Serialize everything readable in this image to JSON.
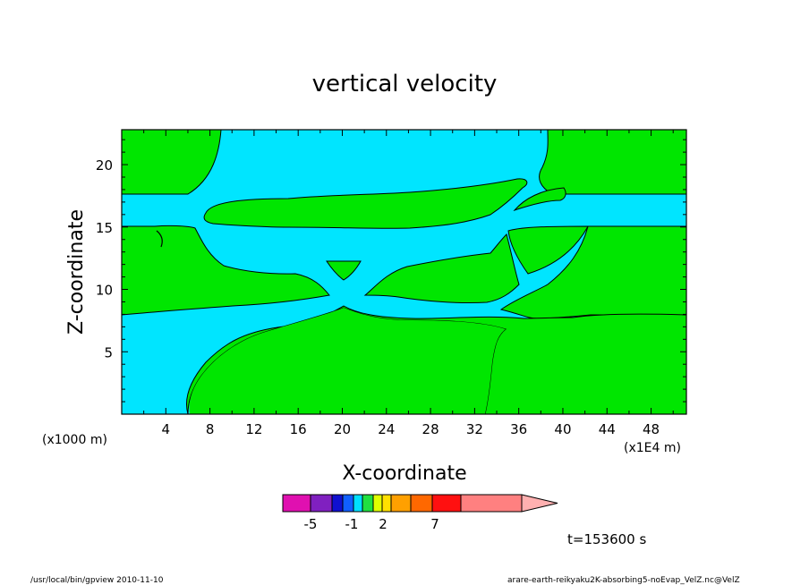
{
  "chart_data": {
    "type": "heatmap",
    "title": "vertical velocity",
    "xlabel": "X-coordinate",
    "ylabel": "Z-coordinate",
    "x_unit": "(x1E4 m)",
    "y_unit": "(x1000 m)",
    "xlim": [
      0,
      51.2
    ],
    "ylim": [
      0,
      22.8
    ],
    "x_ticks": [
      "4",
      "8",
      "12",
      "16",
      "20",
      "24",
      "28",
      "32",
      "36",
      "40",
      "44",
      "48"
    ],
    "y_ticks": [
      "5",
      "10",
      "15",
      "20"
    ],
    "colorbar": {
      "labels": [
        "-5",
        "-1",
        "2",
        "7"
      ],
      "colors": [
        "#e010b0",
        "#8020c0",
        "#1010d0",
        "#1060ff",
        "#00e0ff",
        "#20e040",
        "#e0ff00",
        "#ffe000",
        "#ffa000",
        "#ff6800",
        "#ff1010",
        "#ff8080",
        "#ffb0b0"
      ]
    },
    "regions_color_negative": "#00e5ff",
    "regions_color_positive": "#00e600",
    "time_label": "t=153600 s"
  },
  "footer": {
    "left": "/usr/local/bin/gpview 2010-11-10",
    "right": "arare-earth-reikyaku2K-absorbing5-noEvap_VelZ.nc@VelZ"
  }
}
